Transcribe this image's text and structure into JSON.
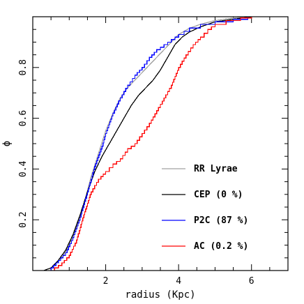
{
  "chart_data": {
    "type": "line",
    "xlabel": "radius (Kpc)",
    "ylabel": "ϕ",
    "xlim": [
      0,
      7
    ],
    "ylim": [
      0,
      1
    ],
    "x_ticks_labeled": [
      2,
      4,
      6
    ],
    "y_ticks_labeled": [
      0.2,
      0.4,
      0.6,
      0.8
    ],
    "x_minor_step": 0.5,
    "y_minor_step": 0.05,
    "legend_position": "lower-right",
    "series": [
      {
        "name": "RR Lyrae",
        "color": "#a0a0a0",
        "step": false,
        "points": [
          [
            0.3,
            0
          ],
          [
            0.5,
            0.01
          ],
          [
            0.8,
            0.05
          ],
          [
            1.0,
            0.1
          ],
          [
            1.2,
            0.17
          ],
          [
            1.4,
            0.26
          ],
          [
            1.6,
            0.37
          ],
          [
            1.8,
            0.46
          ],
          [
            2.0,
            0.55
          ],
          [
            2.2,
            0.62
          ],
          [
            2.4,
            0.68
          ],
          [
            2.6,
            0.72
          ],
          [
            2.8,
            0.75
          ],
          [
            3.0,
            0.78
          ],
          [
            3.2,
            0.81
          ],
          [
            3.4,
            0.84
          ],
          [
            3.6,
            0.87
          ],
          [
            3.8,
            0.9
          ],
          [
            4.0,
            0.93
          ],
          [
            4.3,
            0.955
          ],
          [
            4.6,
            0.97
          ],
          [
            5.0,
            0.985
          ],
          [
            5.5,
            0.995
          ],
          [
            6.0,
            1.0
          ],
          [
            7.0,
            1.0
          ]
        ]
      },
      {
        "name": "CEP (0 %)",
        "color": "#000000",
        "step": false,
        "points": [
          [
            0.3,
            0
          ],
          [
            0.5,
            0.01
          ],
          [
            0.7,
            0.04
          ],
          [
            0.9,
            0.08
          ],
          [
            1.1,
            0.14
          ],
          [
            1.3,
            0.22
          ],
          [
            1.5,
            0.31
          ],
          [
            1.7,
            0.39
          ],
          [
            1.9,
            0.45
          ],
          [
            2.1,
            0.5
          ],
          [
            2.3,
            0.55
          ],
          [
            2.5,
            0.6
          ],
          [
            2.7,
            0.65
          ],
          [
            2.9,
            0.69
          ],
          [
            3.1,
            0.72
          ],
          [
            3.3,
            0.75
          ],
          [
            3.5,
            0.79
          ],
          [
            3.7,
            0.84
          ],
          [
            3.9,
            0.89
          ],
          [
            4.1,
            0.92
          ],
          [
            4.3,
            0.94
          ],
          [
            4.6,
            0.96
          ],
          [
            5.0,
            0.98
          ],
          [
            5.5,
            0.99
          ],
          [
            6.0,
            1.0
          ],
          [
            7.0,
            1.0
          ]
        ]
      },
      {
        "name": "P2C (87 %)",
        "color": "#0000ff",
        "step": true,
        "points": [
          [
            0.3,
            0
          ],
          [
            0.5,
            0.01
          ],
          [
            0.7,
            0.04
          ],
          [
            0.9,
            0.07
          ],
          [
            1.1,
            0.13
          ],
          [
            1.3,
            0.21
          ],
          [
            1.5,
            0.31
          ],
          [
            1.7,
            0.41
          ],
          [
            1.9,
            0.49
          ],
          [
            2.0,
            0.54
          ],
          [
            2.2,
            0.62
          ],
          [
            2.4,
            0.68
          ],
          [
            2.6,
            0.73
          ],
          [
            2.8,
            0.77
          ],
          [
            3.0,
            0.8
          ],
          [
            3.2,
            0.84
          ],
          [
            3.4,
            0.87
          ],
          [
            3.6,
            0.89
          ],
          [
            3.8,
            0.91
          ],
          [
            4.0,
            0.93
          ],
          [
            4.3,
            0.955
          ],
          [
            4.6,
            0.97
          ],
          [
            5.0,
            0.98
          ],
          [
            5.5,
            0.99
          ],
          [
            5.9,
            1.0
          ],
          [
            7.0,
            1.0
          ]
        ]
      },
      {
        "name": "AC  (0.2 %)",
        "color": "#ff0000",
        "step": true,
        "points": [
          [
            0.3,
            0
          ],
          [
            0.6,
            0.01
          ],
          [
            0.8,
            0.03
          ],
          [
            1.0,
            0.06
          ],
          [
            1.2,
            0.12
          ],
          [
            1.4,
            0.22
          ],
          [
            1.6,
            0.31
          ],
          [
            1.8,
            0.36
          ],
          [
            2.0,
            0.39
          ],
          [
            2.2,
            0.42
          ],
          [
            2.4,
            0.44
          ],
          [
            2.6,
            0.48
          ],
          [
            2.8,
            0.5
          ],
          [
            3.0,
            0.54
          ],
          [
            3.2,
            0.58
          ],
          [
            3.4,
            0.63
          ],
          [
            3.6,
            0.68
          ],
          [
            3.8,
            0.73
          ],
          [
            4.0,
            0.8
          ],
          [
            4.2,
            0.85
          ],
          [
            4.4,
            0.89
          ],
          [
            4.6,
            0.92
          ],
          [
            4.8,
            0.95
          ],
          [
            5.0,
            0.97
          ],
          [
            5.3,
            0.985
          ],
          [
            5.7,
            0.995
          ],
          [
            6.0,
            1.0
          ],
          [
            7.0,
            1.0
          ]
        ]
      }
    ]
  }
}
